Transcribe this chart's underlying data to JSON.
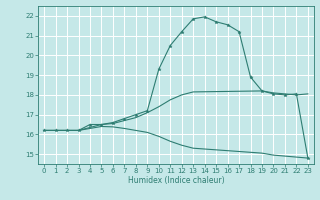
{
  "xlabel": "Humidex (Indice chaleur)",
  "bg_color": "#c5e8e8",
  "grid_color": "#ffffff",
  "line_color": "#2e7d72",
  "xlim": [
    -0.5,
    23.5
  ],
  "ylim": [
    14.5,
    22.5
  ],
  "xticks": [
    0,
    1,
    2,
    3,
    4,
    5,
    6,
    7,
    8,
    9,
    10,
    11,
    12,
    13,
    14,
    15,
    16,
    17,
    18,
    19,
    20,
    21,
    22,
    23
  ],
  "yticks": [
    15,
    16,
    17,
    18,
    19,
    20,
    21,
    22
  ],
  "line1_x": [
    0,
    1,
    2,
    3,
    4,
    5,
    6,
    7,
    8,
    9,
    10,
    11,
    12,
    13,
    14,
    15,
    16,
    17,
    18,
    19,
    20,
    21,
    22,
    23
  ],
  "line1_y": [
    16.2,
    16.2,
    16.2,
    16.2,
    16.5,
    16.5,
    16.6,
    16.8,
    17.0,
    17.2,
    19.3,
    20.5,
    21.2,
    21.85,
    21.95,
    21.7,
    21.55,
    21.2,
    18.9,
    18.2,
    18.05,
    18.0,
    18.05,
    14.8
  ],
  "line2_x": [
    0,
    3,
    5,
    6,
    7,
    8,
    9,
    10,
    11,
    12,
    13,
    19,
    20,
    21,
    22,
    23
  ],
  "line2_y": [
    16.2,
    16.2,
    16.5,
    16.55,
    16.7,
    16.85,
    17.1,
    17.4,
    17.75,
    18.0,
    18.15,
    18.2,
    18.1,
    18.05,
    18.0,
    18.05
  ],
  "line3_x": [
    0,
    3,
    5,
    6,
    7,
    8,
    9,
    10,
    11,
    12,
    13,
    19,
    20,
    21,
    22,
    23
  ],
  "line3_y": [
    16.2,
    16.2,
    16.4,
    16.38,
    16.3,
    16.2,
    16.1,
    15.9,
    15.65,
    15.45,
    15.3,
    15.05,
    14.95,
    14.9,
    14.85,
    14.8
  ]
}
